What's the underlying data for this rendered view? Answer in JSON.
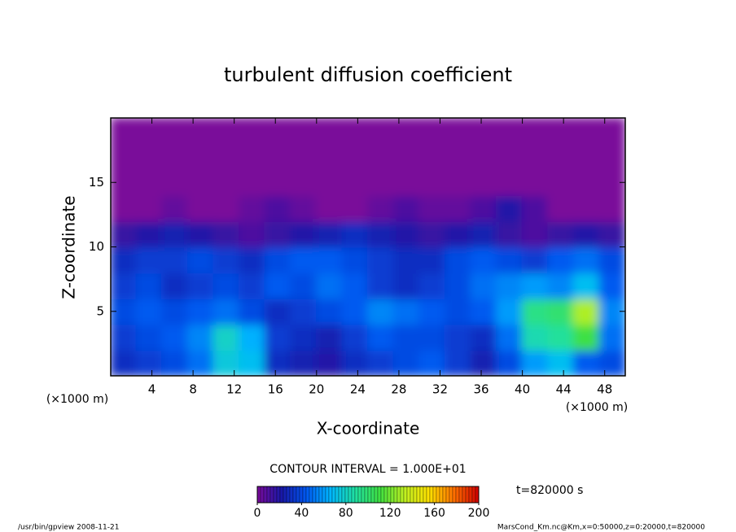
{
  "chart_data": {
    "type": "contour",
    "title": "turbulent diffusion coefficient",
    "xlabel": "X-coordinate",
    "ylabel": "Z-coordinate",
    "x_unit": "(×1000 m)",
    "y_unit": "(×1000 m)",
    "xlim": [
      0,
      50
    ],
    "ylim": [
      0,
      20
    ],
    "xticks": [
      4,
      8,
      12,
      16,
      20,
      24,
      28,
      32,
      36,
      40,
      44,
      48
    ],
    "yticks": [
      5,
      10,
      15
    ],
    "z": [
      [
        30,
        35,
        40,
        50,
        75,
        70,
        30,
        25,
        20,
        30,
        35,
        40,
        45,
        35,
        25,
        40,
        60,
        70,
        45,
        40
      ],
      [
        35,
        40,
        45,
        55,
        80,
        65,
        35,
        30,
        25,
        35,
        45,
        40,
        40,
        35,
        30,
        50,
        85,
        90,
        110,
        50
      ],
      [
        40,
        45,
        40,
        45,
        50,
        40,
        30,
        35,
        40,
        45,
        55,
        50,
        45,
        40,
        45,
        60,
        95,
        100,
        130,
        55
      ],
      [
        35,
        40,
        30,
        35,
        40,
        35,
        45,
        40,
        50,
        45,
        35,
        30,
        35,
        40,
        50,
        55,
        60,
        55,
        70,
        45
      ],
      [
        30,
        35,
        35,
        40,
        35,
        30,
        40,
        45,
        45,
        40,
        35,
        30,
        30,
        40,
        45,
        40,
        35,
        45,
        50,
        40
      ],
      [
        15,
        20,
        25,
        20,
        15,
        10,
        15,
        20,
        25,
        30,
        25,
        20,
        15,
        20,
        25,
        15,
        10,
        15,
        20,
        15
      ],
      [
        0,
        0,
        5,
        0,
        0,
        5,
        10,
        5,
        0,
        0,
        5,
        10,
        5,
        5,
        10,
        20,
        10,
        0,
        0,
        0
      ],
      [
        0,
        0,
        0,
        0,
        0,
        0,
        0,
        0,
        0,
        0,
        0,
        0,
        0,
        0,
        0,
        0,
        0,
        0,
        0,
        0
      ],
      [
        0,
        0,
        0,
        0,
        0,
        0,
        0,
        0,
        0,
        0,
        0,
        0,
        0,
        0,
        0,
        0,
        0,
        0,
        0,
        0
      ],
      [
        0,
        0,
        0,
        0,
        0,
        0,
        0,
        0,
        0,
        0,
        0,
        0,
        0,
        0,
        0,
        0,
        0,
        0,
        0,
        0
      ]
    ],
    "colormap": [
      "#7a0a9a",
      "#1818a8",
      "#0058f0",
      "#00b8ff",
      "#20e0a0",
      "#40e040",
      "#c0f020",
      "#ffe000",
      "#ff7000",
      "#d00000"
    ],
    "clim": [
      0,
      200
    ],
    "colorbar_ticks": [
      0,
      40,
      80,
      120,
      160,
      200
    ],
    "contour_interval": "CONTOUR INTERVAL = 1.000E+01",
    "time_label": "t=820000 s",
    "footer_left": "/usr/bin/gpview  2008-11-21",
    "footer_right": "MarsCond_Km.nc@Km,x=0:50000,z=0:20000,t=820000"
  }
}
